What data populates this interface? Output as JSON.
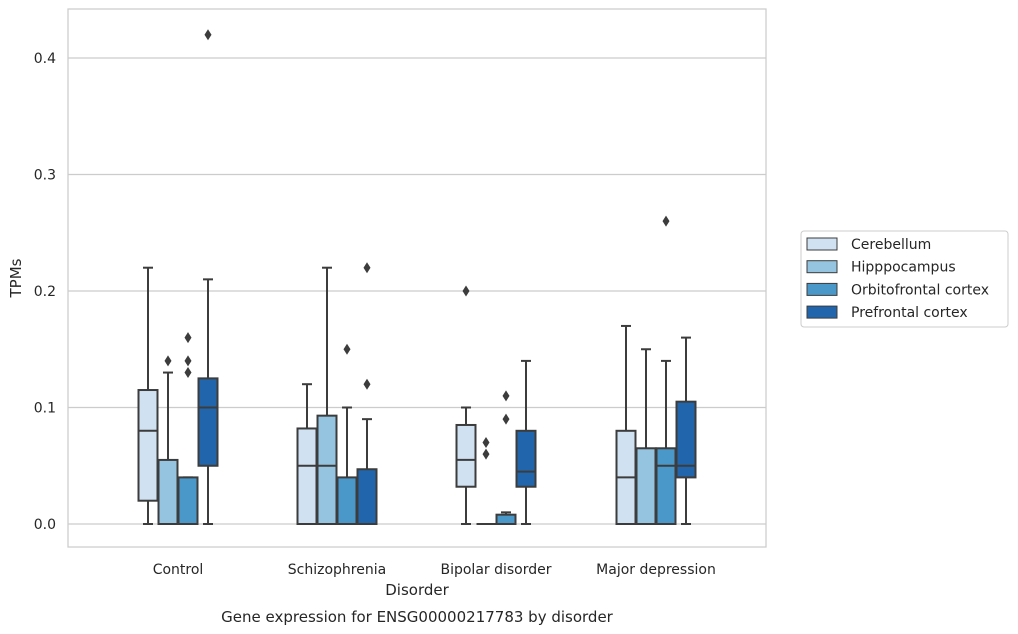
{
  "chart_data": {
    "type": "box",
    "title": "Gene expression for ENSG00000217783 by disorder",
    "xlabel": "Disorder",
    "ylabel": "TPMs",
    "ylim": [
      -0.02,
      0.44
    ],
    "yticks": [
      0.0,
      0.1,
      0.2,
      0.3,
      0.4
    ],
    "ytick_labels": [
      "0.0",
      "0.1",
      "0.2",
      "0.3",
      "0.4"
    ],
    "grid": "horizontal",
    "legend_placement": "right",
    "categories": [
      "Control",
      "Schizophrenia",
      "Bipolar disorder",
      "Major depression"
    ],
    "series": [
      {
        "name": "Cerebellum",
        "color": "#d0e1f2",
        "boxes": [
          {
            "min": 0.0,
            "q1": 0.02,
            "median": 0.08,
            "q3": 0.115,
            "max": 0.22,
            "outliers": []
          },
          {
            "min": 0.0,
            "q1": 0.0,
            "median": 0.05,
            "q3": 0.082,
            "max": 0.12,
            "outliers": []
          },
          {
            "min": 0.0,
            "q1": 0.032,
            "median": 0.055,
            "q3": 0.085,
            "max": 0.1,
            "outliers": [
              0.2
            ]
          },
          {
            "min": 0.0,
            "q1": 0.0,
            "median": 0.04,
            "q3": 0.08,
            "max": 0.17,
            "outliers": []
          }
        ]
      },
      {
        "name": "Hipppocampus",
        "color": "#94c4df",
        "boxes": [
          {
            "min": 0.0,
            "q1": 0.0,
            "median": 0.0,
            "q3": 0.055,
            "max": 0.13,
            "outliers": [
              0.14
            ]
          },
          {
            "min": 0.0,
            "q1": 0.0,
            "median": 0.05,
            "q3": 0.093,
            "max": 0.22,
            "outliers": []
          },
          {
            "min": 0.0,
            "q1": 0.0,
            "median": 0.0,
            "q3": 0.0,
            "max": 0.0,
            "outliers": [
              0.06,
              0.07
            ]
          },
          {
            "min": 0.0,
            "q1": 0.0,
            "median": 0.0,
            "q3": 0.065,
            "max": 0.15,
            "outliers": []
          }
        ]
      },
      {
        "name": "Orbitofrontal cortex",
        "color": "#4a98c9",
        "boxes": [
          {
            "min": 0.0,
            "q1": 0.0,
            "median": 0.0,
            "q3": 0.04,
            "max": 0.04,
            "outliers": [
              0.13,
              0.14,
              0.16
            ]
          },
          {
            "min": 0.0,
            "q1": 0.0,
            "median": 0.0,
            "q3": 0.04,
            "max": 0.1,
            "outliers": [
              0.15
            ]
          },
          {
            "min": 0.0,
            "q1": 0.0,
            "median": 0.0,
            "q3": 0.008,
            "max": 0.01,
            "outliers": [
              0.09,
              0.11
            ]
          },
          {
            "min": 0.0,
            "q1": 0.0,
            "median": 0.05,
            "q3": 0.065,
            "max": 0.14,
            "outliers": [
              0.26
            ]
          }
        ]
      },
      {
        "name": "Prefrontal cortex",
        "color": "#2166ac",
        "boxes": [
          {
            "min": 0.0,
            "q1": 0.05,
            "median": 0.1,
            "q3": 0.125,
            "max": 0.21,
            "outliers": [
              0.42
            ]
          },
          {
            "min": 0.0,
            "q1": 0.0,
            "median": 0.0,
            "q3": 0.047,
            "max": 0.09,
            "outliers": [
              0.12,
              0.22
            ]
          },
          {
            "min": 0.0,
            "q1": 0.032,
            "median": 0.045,
            "q3": 0.08,
            "max": 0.14,
            "outliers": []
          },
          {
            "min": 0.0,
            "q1": 0.04,
            "median": 0.05,
            "q3": 0.105,
            "max": 0.16,
            "outliers": []
          }
        ]
      }
    ]
  }
}
